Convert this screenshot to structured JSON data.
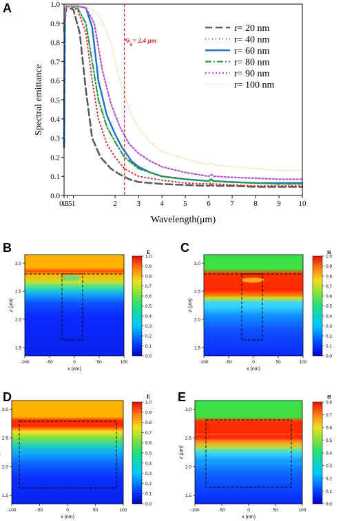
{
  "chart_data": [
    {
      "panel": "A",
      "type": "line",
      "xlabel": "Wavelength(μm)",
      "ylabel": "Spectral emittance",
      "xlim": [
        0.3,
        10
      ],
      "ylim": [
        0,
        1.0
      ],
      "x_tick_labels": [
        "0.3",
        "0.5",
        "1",
        "2",
        "3",
        "4",
        "5",
        "6",
        "7",
        "8",
        "9",
        "10"
      ],
      "x_ticks": [
        0.3,
        0.5,
        1,
        2,
        3,
        4,
        5,
        6,
        7,
        8,
        9,
        10
      ],
      "y_ticks": [
        0,
        0.1,
        0.2,
        0.3,
        0.4,
        0.5,
        0.6,
        0.7,
        0.8,
        0.9,
        1.0
      ],
      "y_tick_labels": [
        "0.0",
        "0.1",
        "0.2",
        "0.3",
        "0.4",
        "0.5",
        "0.6",
        "0.7",
        "0.8",
        "0.9",
        "1.0"
      ],
      "annotation": {
        "text_pre": "λ",
        "text_sub": "g",
        "text_post": "= 2.4 μm",
        "x": 2.4
      },
      "legend_position": "top-right",
      "series": [
        {
          "name": "r= 20 nm",
          "color": "#5a5a5a",
          "dash": "10,5",
          "width": 2.6,
          "points": [
            [
              0.3,
              0.26
            ],
            [
              0.36,
              0.92
            ],
            [
              0.45,
              0.99
            ],
            [
              0.7,
              0.98
            ],
            [
              1.0,
              0.97
            ],
            [
              1.15,
              0.85
            ],
            [
              1.3,
              0.55
            ],
            [
              1.45,
              0.3
            ],
            [
              1.65,
              0.2
            ],
            [
              1.9,
              0.14
            ],
            [
              2.2,
              0.11
            ],
            [
              2.6,
              0.085
            ],
            [
              3,
              0.07
            ],
            [
              4,
              0.06
            ],
            [
              5,
              0.055
            ],
            [
              6,
              0.05
            ],
            [
              6.1,
              0.055
            ],
            [
              6.2,
              0.05
            ],
            [
              7,
              0.05
            ],
            [
              8,
              0.045
            ],
            [
              9,
              0.045
            ],
            [
              10,
              0.045
            ]
          ]
        },
        {
          "name": "r= 40 nm",
          "color": "#d62728",
          "dash": "1,4",
          "width": 2.0,
          "points": [
            [
              0.3,
              0.3
            ],
            [
              0.34,
              0.85
            ],
            [
              0.4,
              0.98
            ],
            [
              0.7,
              0.99
            ],
            [
              1.1,
              0.97
            ],
            [
              1.3,
              0.85
            ],
            [
              1.45,
              0.6
            ],
            [
              1.6,
              0.4
            ],
            [
              1.8,
              0.27
            ],
            [
              2.0,
              0.2
            ],
            [
              2.4,
              0.14
            ],
            [
              3,
              0.1
            ],
            [
              4,
              0.08
            ],
            [
              5,
              0.065
            ],
            [
              6,
              0.06
            ],
            [
              6.1,
              0.065
            ],
            [
              6.2,
              0.06
            ],
            [
              7,
              0.055
            ],
            [
              8,
              0.05
            ],
            [
              9,
              0.05
            ],
            [
              10,
              0.05
            ]
          ]
        },
        {
          "name": "r= 60 nm",
          "color": "#1f6fc4",
          "dash": "",
          "width": 2.4,
          "points": [
            [
              0.3,
              0.25
            ],
            [
              0.32,
              0.65
            ],
            [
              0.34,
              0.92
            ],
            [
              0.4,
              0.98
            ],
            [
              0.7,
              0.99
            ],
            [
              1.1,
              0.99
            ],
            [
              1.3,
              0.98
            ],
            [
              1.45,
              0.88
            ],
            [
              1.6,
              0.6
            ],
            [
              1.8,
              0.42
            ],
            [
              2.0,
              0.32
            ],
            [
              2.3,
              0.25
            ],
            [
              2.7,
              0.18
            ],
            [
              3,
              0.15
            ],
            [
              3.5,
              0.12
            ],
            [
              4,
              0.1
            ],
            [
              5,
              0.085
            ],
            [
              6,
              0.075
            ],
            [
              6.1,
              0.085
            ],
            [
              6.2,
              0.075
            ],
            [
              7,
              0.07
            ],
            [
              8,
              0.065
            ],
            [
              9,
              0.065
            ],
            [
              10,
              0.065
            ]
          ]
        },
        {
          "name": "r= 80 nm",
          "color": "#2a9a4a",
          "dash": "9,3,2,3",
          "width": 2.2,
          "points": [
            [
              0.3,
              0.86
            ],
            [
              0.36,
              0.98
            ],
            [
              0.7,
              0.99
            ],
            [
              1.1,
              0.98
            ],
            [
              1.3,
              0.9
            ],
            [
              1.45,
              0.7
            ],
            [
              1.6,
              0.5
            ],
            [
              1.8,
              0.36
            ],
            [
              2.0,
              0.28
            ],
            [
              2.4,
              0.2
            ],
            [
              3,
              0.14
            ],
            [
              4,
              0.1
            ],
            [
              5,
              0.085
            ],
            [
              6,
              0.075
            ],
            [
              6.1,
              0.085
            ],
            [
              6.2,
              0.075
            ],
            [
              7,
              0.07
            ],
            [
              8,
              0.065
            ],
            [
              9,
              0.06
            ],
            [
              10,
              0.06
            ]
          ]
        },
        {
          "name": "r= 90 nm",
          "color": "#b55fd6",
          "dash": "2,3",
          "width": 2.4,
          "points": [
            [
              0.3,
              0.9
            ],
            [
              0.36,
              0.98
            ],
            [
              0.7,
              0.99
            ],
            [
              1.1,
              0.99
            ],
            [
              1.3,
              0.98
            ],
            [
              1.5,
              0.9
            ],
            [
              1.7,
              0.65
            ],
            [
              1.9,
              0.48
            ],
            [
              2.2,
              0.36
            ],
            [
              2.6,
              0.27
            ],
            [
              3,
              0.22
            ],
            [
              3.5,
              0.18
            ],
            [
              4,
              0.15
            ],
            [
              5,
              0.12
            ],
            [
              6,
              0.1
            ],
            [
              6.1,
              0.11
            ],
            [
              6.2,
              0.1
            ],
            [
              7,
              0.095
            ],
            [
              8,
              0.09
            ],
            [
              9,
              0.085
            ],
            [
              10,
              0.085
            ]
          ]
        },
        {
          "name": "r= 100 nm",
          "color": "#e8d88c",
          "dash": "1,3",
          "width": 1.4,
          "points": [
            [
              0.3,
              0.92
            ],
            [
              0.38,
              0.98
            ],
            [
              0.8,
              0.99
            ],
            [
              1.3,
              0.99
            ],
            [
              1.6,
              0.95
            ],
            [
              1.9,
              0.8
            ],
            [
              2.2,
              0.6
            ],
            [
              2.6,
              0.45
            ],
            [
              3,
              0.35
            ],
            [
              3.5,
              0.28
            ],
            [
              4,
              0.23
            ],
            [
              5,
              0.19
            ],
            [
              6,
              0.16
            ],
            [
              6.1,
              0.17
            ],
            [
              6.2,
              0.16
            ],
            [
              7,
              0.15
            ],
            [
              8,
              0.14
            ],
            [
              9,
              0.13
            ],
            [
              10,
              0.13
            ]
          ]
        }
      ]
    },
    {
      "panel": "B",
      "type": "heatmap",
      "colorbar_label": "E",
      "xlabel": "x (nm)",
      "ylabel": "z (μm)",
      "x_ticks": [
        "-100",
        "-50",
        "0",
        "50",
        "100"
      ],
      "y_ticks": [
        "1.5",
        "2.0",
        "2.5",
        "3.0"
      ],
      "colorbar_ticks": [
        "0.0",
        "0.1",
        "0.2",
        "0.3",
        "0.4",
        "0.5",
        "0.6",
        "0.7",
        "0.8",
        "0.9",
        "1.0"
      ]
    },
    {
      "panel": "C",
      "type": "heatmap",
      "colorbar_label": "H",
      "xlabel": "x (nm)",
      "ylabel": "z (μm)",
      "x_ticks": [
        "-100",
        "-50",
        "0",
        "50",
        "100"
      ],
      "y_ticks": [
        "1.5",
        "2.0",
        "2.5",
        "3.0"
      ],
      "colorbar_ticks": [
        "0.0",
        "0.1",
        "0.2",
        "0.3",
        "0.4",
        "0.5",
        "0.6",
        "0.7",
        "0.8",
        "0.9",
        "1.0"
      ]
    },
    {
      "panel": "D",
      "type": "heatmap",
      "colorbar_label": "E",
      "xlabel": "x (nm)",
      "ylabel": "z (μm)",
      "x_ticks": [
        "-100",
        "-50",
        "0",
        "50",
        "100"
      ],
      "y_ticks": [
        "1.5",
        "2.0",
        "2.5",
        "3.0"
      ],
      "colorbar_ticks": [
        "0.0",
        "0.1",
        "0.2",
        "0.3",
        "0.4",
        "0.5",
        "0.6",
        "0.7",
        "0.8",
        "0.9",
        "1.0"
      ]
    },
    {
      "panel": "E",
      "type": "heatmap",
      "colorbar_label": "H",
      "xlabel": "x (nm)",
      "ylabel": "z (μm)",
      "x_ticks": [
        "-100",
        "-50",
        "0",
        "50",
        "100"
      ],
      "y_ticks": [
        "1.5",
        "2.0",
        "2.5",
        "3.0"
      ],
      "colorbar_ticks": [
        "0.0",
        "0.1",
        "0.2",
        "0.3",
        "0.4",
        "0.5",
        "0.6",
        "0.7",
        "0.8"
      ]
    }
  ]
}
